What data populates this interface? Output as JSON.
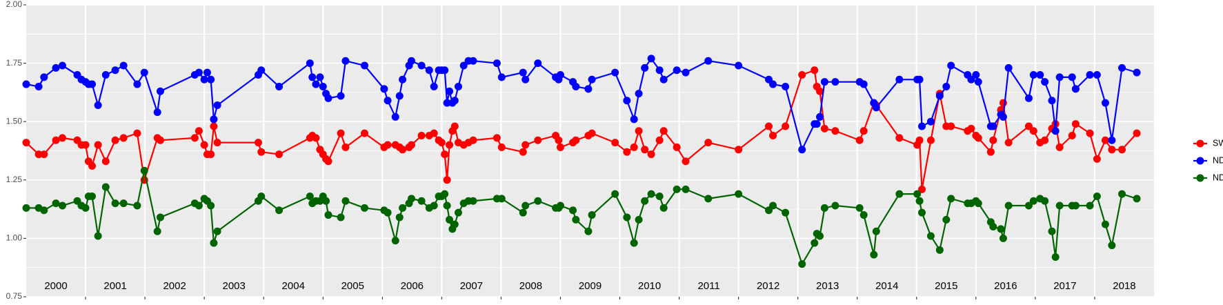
{
  "chart_data": {
    "type": "line",
    "x": [
      2000.0,
      2000.21,
      2000.3,
      2000.5,
      2000.61,
      2000.86,
      2000.93,
      2001.0,
      2001.05,
      2001.11,
      2001.21,
      2001.34,
      2001.5,
      2001.64,
      2001.87,
      2001.99,
      2002.21,
      2002.26,
      2002.84,
      2002.91,
      2003.0,
      2003.05,
      2003.11,
      2003.16,
      2003.22,
      2003.91,
      2003.96,
      2004.26,
      2004.78,
      2004.82,
      2004.88,
      2004.95,
      2005.0,
      2005.05,
      2005.09,
      2005.3,
      2005.38,
      2005.7,
      2006.03,
      2006.09,
      2006.22,
      2006.29,
      2006.34,
      2006.45,
      2006.49,
      2006.66,
      2006.79,
      2006.87,
      2006.95,
      2007.0,
      2007.05,
      2007.09,
      2007.13,
      2007.18,
      2007.22,
      2007.28,
      2007.37,
      2007.45,
      2007.53,
      2007.93,
      2008.01,
      2008.37,
      2008.41,
      2008.62,
      2008.92,
      2008.97,
      2009.0,
      2009.21,
      2009.26,
      2009.47,
      2009.53,
      2009.92,
      2010.12,
      2010.24,
      2010.32,
      2010.42,
      2010.53,
      2010.67,
      2010.74,
      2010.96,
      2011.11,
      2011.49,
      2012.0,
      2012.51,
      2012.58,
      2012.79,
      2013.07,
      2013.28,
      2013.32,
      2013.37,
      2013.45,
      2013.63,
      2014.04,
      2014.11,
      2014.28,
      2014.32,
      2014.71,
      2015.01,
      2015.05,
      2015.09,
      2015.24,
      2015.39,
      2015.5,
      2015.58,
      2015.86,
      2015.92,
      2016.0,
      2016.04,
      2016.25,
      2016.29,
      2016.42,
      2016.46,
      2016.55,
      2016.89,
      2016.97,
      2017.08,
      2017.16,
      2017.28,
      2017.34,
      2017.41,
      2017.62,
      2017.68,
      2017.92,
      2018.04,
      2018.18,
      2018.29,
      2018.46,
      2018.71
    ],
    "series": [
      {
        "name": "SWIR",
        "color": "#ff0000",
        "values": [
          1.41,
          1.36,
          1.36,
          1.42,
          1.43,
          1.42,
          1.4,
          1.4,
          1.33,
          1.31,
          1.4,
          1.33,
          1.42,
          1.43,
          1.45,
          1.25,
          1.43,
          1.42,
          1.43,
          1.46,
          1.4,
          1.36,
          1.36,
          1.48,
          1.41,
          1.41,
          1.37,
          1.36,
          1.43,
          1.44,
          1.43,
          1.38,
          1.36,
          1.34,
          1.33,
          1.45,
          1.39,
          1.45,
          1.39,
          1.4,
          1.4,
          1.39,
          1.38,
          1.39,
          1.4,
          1.44,
          1.44,
          1.45,
          1.42,
          1.41,
          1.36,
          1.25,
          1.4,
          1.46,
          1.48,
          1.41,
          1.4,
          1.41,
          1.42,
          1.43,
          1.39,
          1.37,
          1.4,
          1.42,
          1.44,
          1.42,
          1.39,
          1.41,
          1.42,
          1.44,
          1.45,
          1.41,
          1.37,
          1.39,
          1.46,
          1.38,
          1.36,
          1.42,
          1.46,
          1.39,
          1.33,
          1.41,
          1.38,
          1.48,
          1.44,
          1.48,
          1.7,
          1.72,
          1.65,
          1.63,
          1.47,
          1.46,
          1.42,
          1.46,
          1.58,
          1.57,
          1.43,
          1.4,
          1.42,
          1.21,
          1.42,
          1.62,
          1.48,
          1.48,
          1.46,
          1.47,
          1.44,
          1.43,
          1.37,
          1.42,
          1.55,
          1.58,
          1.41,
          1.48,
          1.46,
          1.41,
          1.42,
          1.47,
          1.49,
          1.39,
          1.44,
          1.49,
          1.45,
          1.34,
          1.42,
          1.38,
          1.38,
          1.45
        ]
      },
      {
        "name": "NDVI",
        "color": "#0000ff",
        "values": [
          1.66,
          1.65,
          1.69,
          1.73,
          1.74,
          1.7,
          1.68,
          1.67,
          1.66,
          1.66,
          1.57,
          1.7,
          1.72,
          1.74,
          1.66,
          1.71,
          1.54,
          1.63,
          1.7,
          1.71,
          1.68,
          1.71,
          1.68,
          1.51,
          1.57,
          1.7,
          1.72,
          1.65,
          1.75,
          1.69,
          1.66,
          1.69,
          1.65,
          1.62,
          1.6,
          1.61,
          1.76,
          1.74,
          1.64,
          1.59,
          1.52,
          1.61,
          1.68,
          1.74,
          1.76,
          1.74,
          1.72,
          1.65,
          1.72,
          1.72,
          1.72,
          1.58,
          1.63,
          1.58,
          1.59,
          1.65,
          1.74,
          1.76,
          1.76,
          1.75,
          1.69,
          1.71,
          1.68,
          1.75,
          1.69,
          1.68,
          1.7,
          1.67,
          1.65,
          1.64,
          1.68,
          1.71,
          1.59,
          1.51,
          1.62,
          1.73,
          1.77,
          1.72,
          1.68,
          1.72,
          1.71,
          1.76,
          1.74,
          1.68,
          1.66,
          1.65,
          1.38,
          1.49,
          1.49,
          1.52,
          1.67,
          1.67,
          1.67,
          1.66,
          1.58,
          1.56,
          1.68,
          1.68,
          1.68,
          1.48,
          1.5,
          1.61,
          1.65,
          1.74,
          1.7,
          1.68,
          1.7,
          1.67,
          1.48,
          1.48,
          1.53,
          1.52,
          1.73,
          1.6,
          1.7,
          1.7,
          1.67,
          1.59,
          1.46,
          1.69,
          1.69,
          1.64,
          1.7,
          1.7,
          1.58,
          1.42,
          1.73,
          1.71
        ]
      },
      {
        "name": "NDWI",
        "color": "#006400",
        "values": [
          1.13,
          1.13,
          1.12,
          1.15,
          1.14,
          1.16,
          1.14,
          1.13,
          1.18,
          1.18,
          1.01,
          1.22,
          1.15,
          1.15,
          1.14,
          1.29,
          1.03,
          1.09,
          1.15,
          1.14,
          1.17,
          1.16,
          1.14,
          0.98,
          1.03,
          1.16,
          1.18,
          1.12,
          1.18,
          1.15,
          1.16,
          1.16,
          1.18,
          1.16,
          1.1,
          1.09,
          1.16,
          1.13,
          1.12,
          1.11,
          0.99,
          1.09,
          1.13,
          1.15,
          1.17,
          1.16,
          1.13,
          1.14,
          1.18,
          1.18,
          1.19,
          1.14,
          1.08,
          1.04,
          1.06,
          1.11,
          1.15,
          1.16,
          1.16,
          1.17,
          1.17,
          1.11,
          1.14,
          1.16,
          1.13,
          1.13,
          1.14,
          1.12,
          1.08,
          1.03,
          1.1,
          1.19,
          1.09,
          0.98,
          1.08,
          1.16,
          1.19,
          1.18,
          1.13,
          1.21,
          1.21,
          1.17,
          1.19,
          1.12,
          1.14,
          1.11,
          0.89,
          0.98,
          1.02,
          1.01,
          1.13,
          1.14,
          1.13,
          1.1,
          0.93,
          1.03,
          1.19,
          1.19,
          1.16,
          1.11,
          1.01,
          0.95,
          1.08,
          1.17,
          1.15,
          1.15,
          1.16,
          1.15,
          1.07,
          1.05,
          1.04,
          1.0,
          1.14,
          1.14,
          1.16,
          1.17,
          1.16,
          1.03,
          0.92,
          1.14,
          1.14,
          1.14,
          1.14,
          1.18,
          1.06,
          0.97,
          1.19,
          1.17
        ]
      }
    ],
    "xlim": [
      2000,
      2019
    ],
    "xticks": [
      {
        "value": 2000.5,
        "label": "2000"
      },
      {
        "value": 2001.5,
        "label": "2001"
      },
      {
        "value": 2002.5,
        "label": "2002"
      },
      {
        "value": 2003.5,
        "label": "2003"
      },
      {
        "value": 2004.5,
        "label": "2004"
      },
      {
        "value": 2005.5,
        "label": "2005"
      },
      {
        "value": 2006.5,
        "label": "2006"
      },
      {
        "value": 2007.5,
        "label": "2007"
      },
      {
        "value": 2008.5,
        "label": "2008"
      },
      {
        "value": 2009.5,
        "label": "2009"
      },
      {
        "value": 2010.5,
        "label": "2010"
      },
      {
        "value": 2011.5,
        "label": "2011"
      },
      {
        "value": 2012.5,
        "label": "2012"
      },
      {
        "value": 2013.5,
        "label": "2013"
      },
      {
        "value": 2014.5,
        "label": "2014"
      },
      {
        "value": 2015.5,
        "label": "2015"
      },
      {
        "value": 2016.5,
        "label": "2016"
      },
      {
        "value": 2017.5,
        "label": "2017"
      },
      {
        "value": 2018.5,
        "label": "2018"
      }
    ],
    "xgrid": [
      2001,
      2002,
      2003,
      2004,
      2005,
      2006,
      2007,
      2008,
      2009,
      2010,
      2011,
      2012,
      2013,
      2014,
      2015,
      2016,
      2017,
      2018
    ],
    "ylim": [
      0.75,
      2.0
    ],
    "yticks": [
      0.75,
      {
        "value": 1.0,
        "label": "1.00"
      },
      1.25,
      {
        "value": 1.5,
        "label": "1.50"
      },
      1.75,
      {
        "value": 2.0,
        "label": "2.00"
      }
    ],
    "grid": true,
    "legend": "right"
  }
}
